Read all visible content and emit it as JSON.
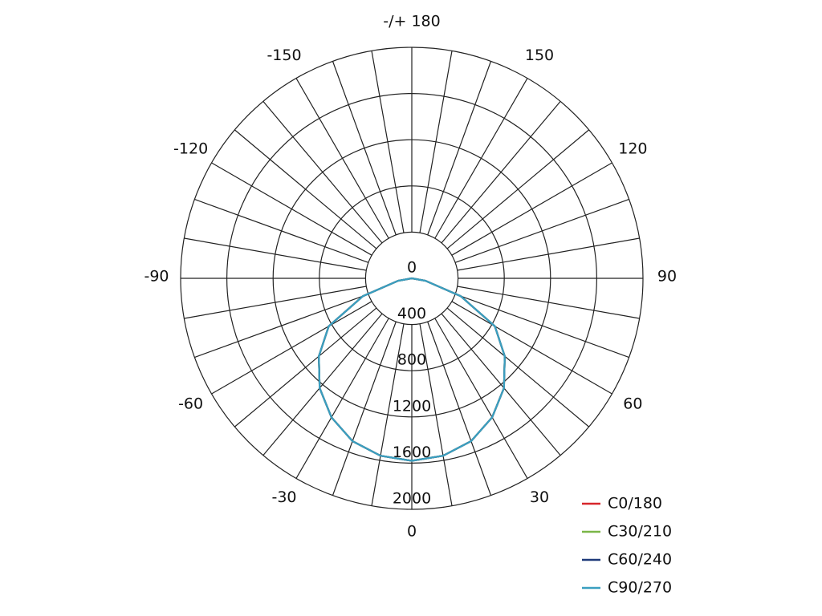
{
  "chart_data": {
    "type": "polar",
    "rlim": [
      0,
      2000
    ],
    "rticks": [
      0,
      400,
      800,
      1200,
      1600,
      2000
    ],
    "angle_ticks": [
      0,
      30,
      60,
      90,
      120,
      150,
      {
        "value": 180,
        "label": "-/+ 180"
      },
      -150,
      -120,
      -90,
      -60,
      -30
    ],
    "grid": true,
    "legend": "lower right",
    "x": [
      -90,
      -80,
      -70,
      -60,
      -50,
      -40,
      -30,
      -20,
      -10,
      0,
      10,
      20,
      30,
      40,
      50,
      60,
      70,
      80,
      90
    ],
    "series": [
      {
        "name": "C0/180",
        "color": "#d7262b",
        "values": [
          0,
          120,
          450,
          830,
          1050,
          1240,
          1390,
          1500,
          1560,
          1580,
          1560,
          1500,
          1390,
          1240,
          1050,
          830,
          450,
          120,
          0
        ]
      },
      {
        "name": "C30/210",
        "color": "#7ab648",
        "values": [
          0,
          120,
          450,
          830,
          1050,
          1240,
          1390,
          1500,
          1560,
          1580,
          1560,
          1500,
          1390,
          1240,
          1050,
          830,
          450,
          120,
          0
        ]
      },
      {
        "name": "C60/240",
        "color": "#1f3a7a",
        "values": [
          0,
          120,
          450,
          830,
          1050,
          1240,
          1390,
          1500,
          1560,
          1580,
          1560,
          1500,
          1390,
          1240,
          1050,
          830,
          450,
          120,
          0
        ]
      },
      {
        "name": "C90/270",
        "color": "#3a9fc0",
        "values": [
          0,
          120,
          450,
          830,
          1050,
          1240,
          1390,
          1500,
          1560,
          1580,
          1560,
          1500,
          1390,
          1240,
          1050,
          830,
          450,
          120,
          0
        ]
      }
    ]
  }
}
